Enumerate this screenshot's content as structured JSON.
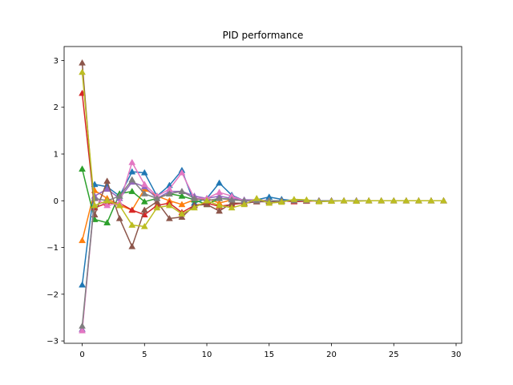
{
  "chart_data": {
    "type": "line",
    "title": "PID performance",
    "xlabel": "",
    "ylabel": "",
    "xlim": [
      -1.45,
      30.45
    ],
    "ylim": [
      -3.05,
      3.3
    ],
    "xticks": [
      0,
      5,
      10,
      15,
      20,
      25,
      30
    ],
    "yticks": [
      -3,
      -2,
      -1,
      0,
      1,
      2,
      3
    ],
    "grid": false,
    "legend": "none",
    "marker": "triangle-up",
    "x": [
      0,
      1,
      2,
      3,
      4,
      5,
      6,
      7,
      8,
      9,
      10,
      11,
      12,
      13,
      14,
      15,
      16,
      17,
      18,
      19,
      20,
      21,
      22,
      23,
      24,
      25,
      26,
      27,
      28,
      29
    ],
    "series": [
      {
        "color": "#1f77b4",
        "values": [
          -1.8,
          0.35,
          0.3,
          0.1,
          0.62,
          0.6,
          0.1,
          0.33,
          0.65,
          -0.05,
          0.05,
          0.38,
          0.12,
          0.0,
          0.02,
          0.08,
          0.03,
          0.0,
          0.01,
          0.0,
          0,
          0,
          0,
          0,
          0,
          0,
          0,
          0,
          0,
          0
        ]
      },
      {
        "color": "#ff7f0e",
        "values": [
          -0.85,
          0.22,
          0.05,
          -0.1,
          -0.2,
          0.25,
          0.1,
          0.0,
          -0.08,
          0.02,
          0.05,
          -0.05,
          0.02,
          0.0,
          0.01,
          0.0,
          0,
          0,
          0,
          0,
          0,
          0,
          0,
          0,
          0,
          0,
          0,
          0,
          0,
          0
        ]
      },
      {
        "color": "#2ca02c",
        "values": [
          0.68,
          -0.4,
          -0.47,
          0.15,
          0.2,
          -0.02,
          0.05,
          0.15,
          0.1,
          0.02,
          -0.08,
          0.05,
          0.03,
          0.0,
          0.01,
          0.0,
          0,
          0,
          0,
          0,
          0,
          0,
          0,
          0,
          0,
          0,
          0,
          0,
          0,
          0
        ]
      },
      {
        "color": "#d62728",
        "values": [
          2.3,
          -0.15,
          -0.05,
          -0.05,
          -0.2,
          -0.3,
          -0.1,
          -0.05,
          -0.25,
          -0.1,
          -0.05,
          -0.12,
          -0.08,
          -0.05,
          -0.02,
          -0.01,
          0.0,
          -0.02,
          -0.01,
          0,
          0,
          0,
          0,
          0,
          0,
          0,
          0,
          0,
          0,
          0
        ]
      },
      {
        "color": "#9467bd",
        "values": [
          -2.75,
          0.1,
          0.25,
          0.05,
          0.4,
          0.3,
          0.05,
          0.2,
          0.2,
          0.1,
          0.05,
          0.1,
          0.05,
          0.02,
          0.02,
          0.0,
          0,
          0,
          0,
          0,
          0,
          0,
          0,
          0,
          0,
          0,
          0,
          0,
          0,
          0
        ]
      },
      {
        "color": "#8c564b",
        "values": [
          2.95,
          -0.3,
          0.42,
          -0.38,
          -0.98,
          -0.2,
          -0.02,
          -0.38,
          -0.35,
          -0.1,
          -0.08,
          -0.22,
          -0.05,
          -0.05,
          -0.02,
          -0.02,
          -0.01,
          0,
          0,
          0,
          0,
          0,
          0,
          0,
          0,
          0,
          0,
          0,
          0,
          0
        ]
      },
      {
        "color": "#e377c2",
        "values": [
          -2.78,
          0.05,
          -0.1,
          -0.05,
          0.82,
          0.35,
          0.1,
          0.25,
          0.6,
          0.05,
          0.05,
          0.18,
          0.1,
          0.0,
          0.02,
          0.0,
          0,
          0,
          0,
          0,
          0,
          0,
          0,
          0,
          0,
          0,
          0,
          0,
          0,
          0
        ]
      },
      {
        "color": "#7f7f7f",
        "values": [
          -2.68,
          0.05,
          0.0,
          0.1,
          0.45,
          0.15,
          0.05,
          0.15,
          0.2,
          0.05,
          0.0,
          0.05,
          0.02,
          0.0,
          0.0,
          0.0,
          0,
          0,
          0,
          0,
          0,
          0,
          0,
          0,
          0,
          0,
          0,
          0,
          0,
          0
        ]
      },
      {
        "color": "#bcbd22",
        "values": [
          2.75,
          -0.1,
          0.0,
          -0.1,
          -0.52,
          -0.55,
          -0.15,
          -0.1,
          -0.28,
          -0.15,
          0.0,
          -0.1,
          -0.15,
          -0.08,
          0.05,
          -0.05,
          -0.03,
          0.03,
          0.02,
          -0.02,
          -0.01,
          0,
          -0.01,
          0,
          0,
          0,
          0,
          0,
          0,
          0
        ]
      }
    ]
  }
}
